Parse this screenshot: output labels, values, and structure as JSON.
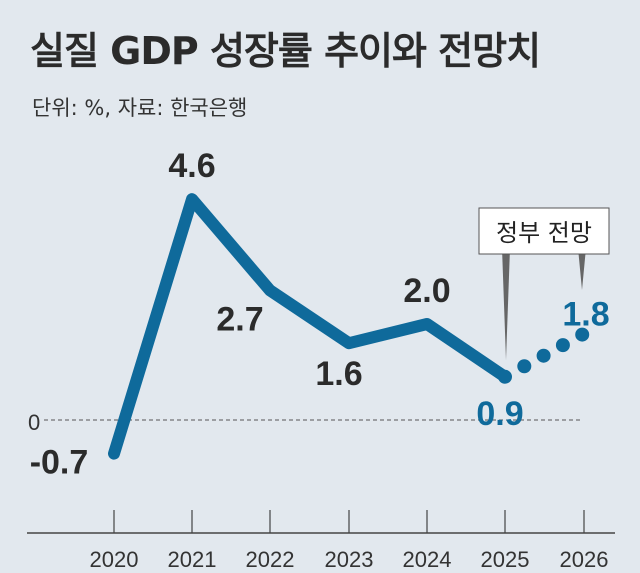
{
  "title": "실질 GDP 성장률 추이와 전망치",
  "subtitle": "단위: %, 자료: 한국은행",
  "annotation": "정부 전망",
  "colors": {
    "line": "#0f6a9b",
    "actual_label": "#2b2b2b",
    "forecast_label": "#0f6a9b",
    "background": "#e2e8ee"
  },
  "chart_data": {
    "type": "line",
    "title": "실질 GDP 성장률 추이와 전망치",
    "categories": [
      "2020",
      "2021",
      "2022",
      "2023",
      "2024",
      "2025",
      "2026"
    ],
    "series": [
      {
        "values": [
          -0.7,
          4.6,
          2.7,
          1.6,
          2.0,
          0.9,
          null
        ],
        "style": "solid"
      },
      {
        "values": [
          null,
          null,
          null,
          null,
          null,
          0.9,
          1.8
        ],
        "style": "dotted"
      }
    ],
    "data_labels": [
      "-0.7",
      "4.6",
      "2.7",
      "1.6",
      "2.0",
      "0.9",
      "1.8"
    ],
    "y_reference_label": "0",
    "grid": false
  }
}
